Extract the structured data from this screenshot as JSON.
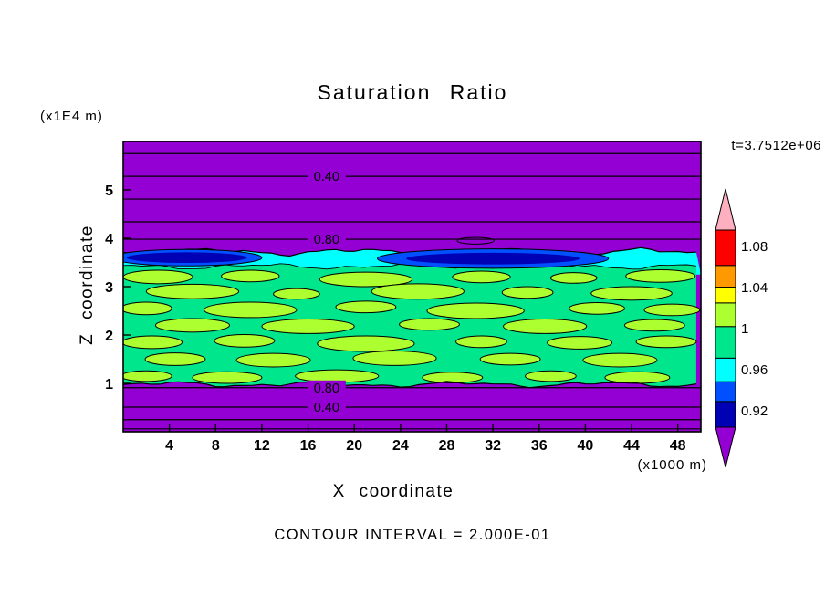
{
  "title": "Saturation Ratio",
  "annotations": {
    "y_axis_unit": "(x1E4 m)",
    "x_axis_unit": "(x1000 m)",
    "time_stamp": "t=3.7512e+06",
    "contour_note": "CONTOUR INTERVAL = 2.000E-01"
  },
  "chart_data": {
    "type": "heatmap",
    "title": "Saturation Ratio",
    "xlabel": "X coordinate",
    "ylabel": "Z coordinate",
    "xlim": [
      0,
      50
    ],
    "ylim": [
      0,
      6
    ],
    "x_ticks": [
      4,
      8,
      12,
      16,
      20,
      24,
      28,
      32,
      36,
      40,
      44,
      48
    ],
    "y_ticks": [
      1,
      2,
      3,
      4,
      5
    ],
    "contour_interval": 0.2,
    "colors": {
      "background_low": "#9400D3",
      "band_green": "#00E68C",
      "moist_layer_cyan": "#00FFFF",
      "pocket_blue_outer": "#0050FF",
      "pocket_blue_inner": "#0000B4",
      "blob_green_yellow": "#ADFF2F",
      "outline": "#000000"
    },
    "colorbar": {
      "tick_labels": [
        "1.08",
        "1.04",
        "1",
        "0.96",
        "0.92"
      ],
      "segments": [
        {
          "color": "#FF0000",
          "frac": 0.18
        },
        {
          "color": "#FF9900",
          "frac": 0.11
        },
        {
          "color": "#FFFF00",
          "frac": 0.08
        },
        {
          "color": "#ADFF2F",
          "frac": 0.12
        },
        {
          "color": "#00E68C",
          "frac": 0.16
        },
        {
          "color": "#00FFFF",
          "frac": 0.12
        },
        {
          "color": "#0050FF",
          "frac": 0.1
        },
        {
          "color": "#0000B4",
          "frac": 0.13
        }
      ],
      "over_arrow_color": "#FFB0C0",
      "under_arrow_color": "#9400D3"
    },
    "h_contours": [
      {
        "z": 5.75,
        "label": ""
      },
      {
        "z": 5.28,
        "label": "0.40"
      },
      {
        "z": 4.81,
        "label": ""
      },
      {
        "z": 4.34,
        "label": ""
      },
      {
        "z": 3.98,
        "label": "0.80"
      },
      {
        "z": 0.91,
        "label": "0.80"
      },
      {
        "z": 0.51,
        "label": "0.40"
      },
      {
        "z": 0.25,
        "label": ""
      },
      {
        "z": 0.06,
        "label": ""
      }
    ],
    "contour_label_x": 17.6,
    "bands": {
      "cyan_top_z": 3.72,
      "cyan_bottom_z": 3.25,
      "green_top_z": 3.42,
      "green_bottom_z": 0.98
    },
    "dark_blobs": [
      {
        "x": 5.5,
        "z": 3.6,
        "rx": 6.5,
        "rz": 0.17,
        "layer": "outer"
      },
      {
        "x": 5.5,
        "z": 3.6,
        "rx": 5.2,
        "rz": 0.11,
        "layer": "inner"
      },
      {
        "x": 32.0,
        "z": 3.58,
        "rx": 10.0,
        "rz": 0.2,
        "layer": "outer"
      },
      {
        "x": 32.0,
        "z": 3.58,
        "rx": 7.5,
        "rz": 0.12,
        "layer": "inner"
      }
    ],
    "lens_contours": [
      {
        "x": 30.5,
        "z": 3.95,
        "rx": 1.6,
        "rz": 0.07
      }
    ],
    "bright_blobs": [
      [
        3,
        3.2,
        3.0,
        0.14
      ],
      [
        11,
        3.22,
        2.5,
        0.12
      ],
      [
        21,
        3.15,
        4.0,
        0.15
      ],
      [
        31,
        3.2,
        2.5,
        0.12
      ],
      [
        39,
        3.18,
        2.0,
        0.11
      ],
      [
        46.5,
        3.22,
        3.0,
        0.13
      ],
      [
        6,
        2.9,
        4.0,
        0.15
      ],
      [
        15,
        2.85,
        2.0,
        0.11
      ],
      [
        25.5,
        2.9,
        4.0,
        0.16
      ],
      [
        35,
        2.88,
        2.2,
        0.12
      ],
      [
        44,
        2.86,
        3.5,
        0.14
      ],
      [
        2,
        2.55,
        2.2,
        0.13
      ],
      [
        11,
        2.52,
        4.0,
        0.16
      ],
      [
        21,
        2.58,
        2.6,
        0.12
      ],
      [
        30.5,
        2.5,
        4.2,
        0.16
      ],
      [
        41,
        2.55,
        2.4,
        0.12
      ],
      [
        47.5,
        2.52,
        2.4,
        0.12
      ],
      [
        6,
        2.2,
        3.2,
        0.14
      ],
      [
        16,
        2.18,
        4.0,
        0.15
      ],
      [
        26.5,
        2.22,
        2.6,
        0.12
      ],
      [
        36.5,
        2.18,
        3.6,
        0.15
      ],
      [
        46,
        2.2,
        2.6,
        0.12
      ],
      [
        2.5,
        1.85,
        2.6,
        0.13
      ],
      [
        10.5,
        1.88,
        2.6,
        0.13
      ],
      [
        21,
        1.82,
        4.2,
        0.16
      ],
      [
        31,
        1.86,
        2.2,
        0.12
      ],
      [
        39.5,
        1.84,
        2.8,
        0.13
      ],
      [
        47,
        1.86,
        2.6,
        0.12
      ],
      [
        4.5,
        1.5,
        2.6,
        0.13
      ],
      [
        13,
        1.48,
        3.2,
        0.14
      ],
      [
        23.5,
        1.52,
        3.6,
        0.15
      ],
      [
        33.5,
        1.5,
        2.6,
        0.12
      ],
      [
        43,
        1.48,
        3.2,
        0.14
      ],
      [
        2,
        1.15,
        2.2,
        0.11
      ],
      [
        9,
        1.12,
        3.0,
        0.12
      ],
      [
        18.5,
        1.15,
        3.6,
        0.13
      ],
      [
        28.5,
        1.12,
        2.6,
        0.11
      ],
      [
        37,
        1.15,
        2.2,
        0.11
      ],
      [
        44.5,
        1.12,
        2.8,
        0.12
      ]
    ]
  }
}
